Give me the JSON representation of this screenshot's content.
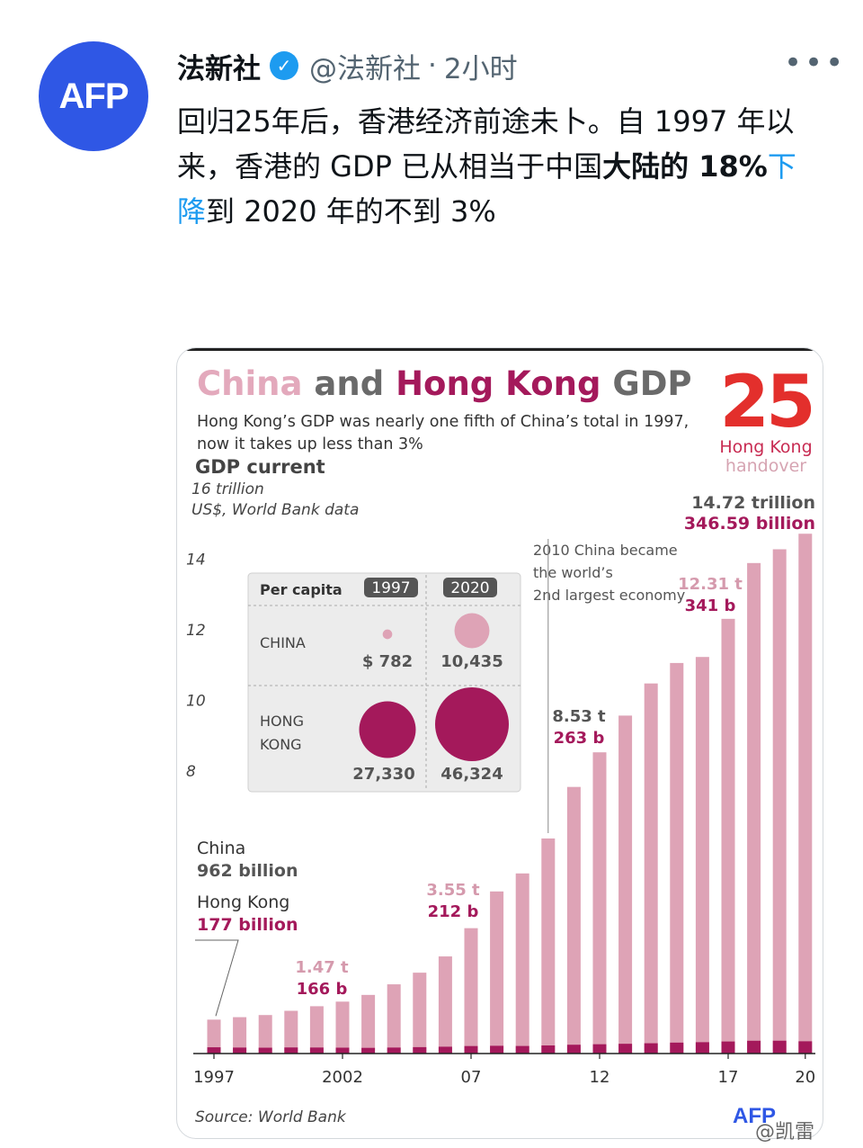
{
  "tweet": {
    "avatar_text": "AFP",
    "author_name": "法新社",
    "verified_icon": "verified-badge-icon",
    "handle": "@法新社",
    "separator": "·",
    "time": "2小时",
    "more_label": "•••",
    "text_1": "回归25年后，香港经济前途未卜。自 1997 年以来，香港的 GDP 已从相当于中国",
    "text_bold_1": "大陆的 18%",
    "text_link": "下降",
    "text_2": "到 2020 年的不到 3%"
  },
  "chart_card": {
    "title_china": "China",
    "title_and": "and",
    "title_hk": "Hong Kong",
    "title_gdp": "GDP",
    "subtitle": "Hong Kong’s GDP was nearly one fifth of China’s total  in 1997, now it takes up less than 3%",
    "gdp_current_label": "GDP current",
    "unit_line1": "16 trillion",
    "unit_line2": "US$, World Bank data",
    "logo_number": "25",
    "logo_line1": "Hong Kong",
    "logo_line2": "handover",
    "source": "Source: World Bank",
    "afp_mini": "AFP",
    "colors": {
      "china": "#dea3b6",
      "hong_kong": "#a4195b"
    }
  },
  "chart_data": {
    "type": "bar",
    "title": "China and Hong Kong GDP",
    "subtitle": "Hong Kong’s GDP was nearly one fifth of China’s total  in 1997, now it takes up less than 3%",
    "ylabel": "16 trillion US$, World Bank data",
    "ylim": [
      0,
      16
    ],
    "yticks": [
      8,
      10,
      12,
      14
    ],
    "x": [
      1997,
      1998,
      1999,
      2000,
      2001,
      2002,
      2003,
      2004,
      2005,
      2006,
      2007,
      2008,
      2009,
      2010,
      2011,
      2012,
      2013,
      2014,
      2015,
      2016,
      2017,
      2018,
      2019,
      2020
    ],
    "xtick_labels": [
      {
        "x": 1997,
        "label": "1997"
      },
      {
        "x": 2002,
        "label": "2002"
      },
      {
        "x": 2007,
        "label": "07"
      },
      {
        "x": 2012,
        "label": "12"
      },
      {
        "x": 2017,
        "label": "17"
      },
      {
        "x": 2020,
        "label": "20"
      }
    ],
    "series": [
      {
        "name": "China",
        "values": [
          0.96,
          1.03,
          1.09,
          1.21,
          1.34,
          1.47,
          1.66,
          1.96,
          2.29,
          2.75,
          3.55,
          4.59,
          5.1,
          6.09,
          7.55,
          8.53,
          9.57,
          10.48,
          11.06,
          11.23,
          12.31,
          13.89,
          14.28,
          14.72
        ]
      },
      {
        "name": "Hong Kong",
        "values": [
          0.177,
          0.169,
          0.165,
          0.172,
          0.17,
          0.166,
          0.161,
          0.169,
          0.181,
          0.193,
          0.212,
          0.219,
          0.214,
          0.229,
          0.249,
          0.263,
          0.276,
          0.291,
          0.309,
          0.321,
          0.341,
          0.362,
          0.363,
          0.347
        ]
      }
    ],
    "annotations": [
      {
        "x": 1997,
        "china": "962 billion",
        "hk": "177 billion",
        "china_label": "China",
        "hk_label": "Hong Kong"
      },
      {
        "x": 2002,
        "china": "1.47 t",
        "hk": "166 b"
      },
      {
        "x": 2007,
        "china": "3.55 t",
        "hk": "212 b"
      },
      {
        "x": 2012,
        "china": "8.53 t",
        "hk": "263 b"
      },
      {
        "x": 2017,
        "china": "12.31 t",
        "hk": "341 b"
      },
      {
        "x": 2020,
        "china": "14.72 trillion",
        "hk": "346.59 billion"
      }
    ],
    "note_2010": "2010 China became the world’s 2nd largest economy",
    "inset": {
      "title": "Per capita",
      "years": [
        "1997",
        "2020"
      ],
      "rows": [
        {
          "name": "CHINA",
          "values": [
            782,
            10435
          ],
          "labels": [
            "$ 782",
            "10,435"
          ]
        },
        {
          "name": "HONG KONG",
          "values": [
            27330,
            46324
          ],
          "labels": [
            "27,330",
            "46,324"
          ]
        }
      ]
    }
  },
  "watermark": "@凯雷"
}
